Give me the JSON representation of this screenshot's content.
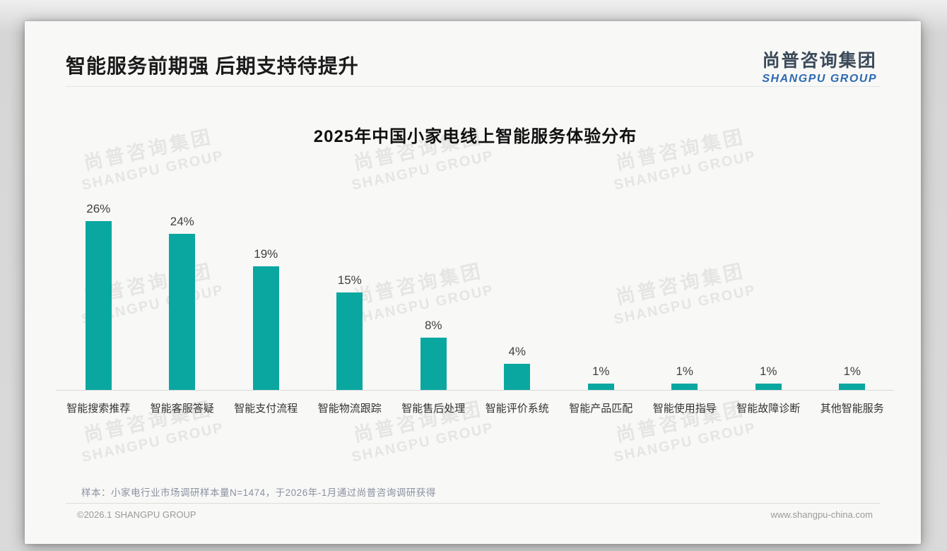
{
  "page": {
    "title": "智能服务前期强 后期支持待提升"
  },
  "logo": {
    "cn": "尚普咨询集团",
    "en": "SHANGPU GROUP",
    "cn_color": "#3b4a59",
    "en_color": "#2d6ab0"
  },
  "chart_data": {
    "type": "bar",
    "title": "2025年中国小家电线上智能服务体验分布",
    "categories": [
      "智能搜索推荐",
      "智能客服答疑",
      "智能支付流程",
      "智能物流跟踪",
      "智能售后处理",
      "智能评价系统",
      "智能产品匹配",
      "智能使用指导",
      "智能故障诊断",
      "其他智能服务"
    ],
    "values": [
      26,
      24,
      19,
      15,
      8,
      4,
      1,
      1,
      1,
      1
    ],
    "value_labels": [
      "26%",
      "24%",
      "19%",
      "15%",
      "8%",
      "4%",
      "1%",
      "1%",
      "1%",
      "1%"
    ],
    "unit": "%",
    "bar_color": "#0aa7a0",
    "ylim": [
      0,
      28
    ],
    "grid": false,
    "legend": false,
    "xlabel": "",
    "ylabel": ""
  },
  "footnote": {
    "text": "样本：小家电行业市场调研样本量N=1474，于2026年-1月通过尚普咨询调研获得"
  },
  "footer": {
    "copyright": "©2026.1 SHANGPU GROUP",
    "website": "www.shangpu-china.com"
  },
  "watermark": {
    "cn": "尚普咨询集团",
    "en": "SHANGPU GROUP"
  }
}
